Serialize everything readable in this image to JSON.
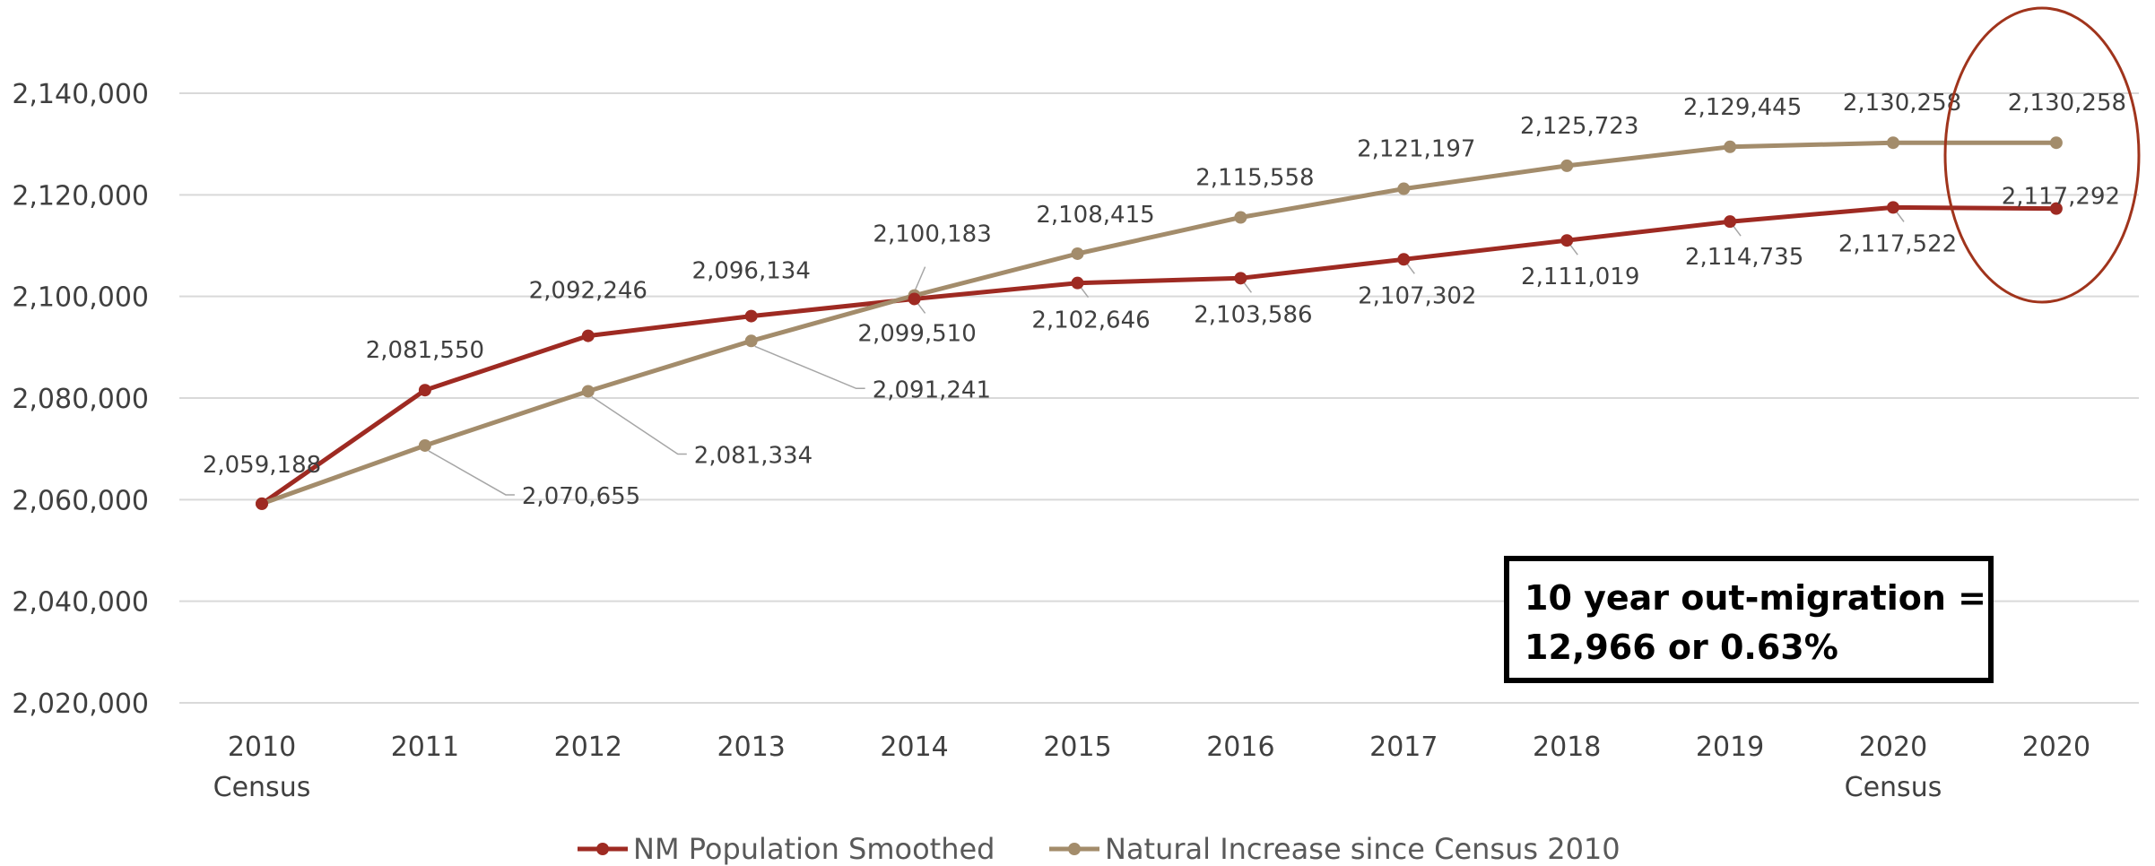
{
  "chart_data": {
    "type": "line",
    "categories": [
      "2010|Census",
      "2011",
      "2012",
      "2013",
      "2014",
      "2015",
      "2016",
      "2017",
      "2018",
      "2019",
      "2020|Census",
      "2020"
    ],
    "ylim": [
      2020000,
      2140000
    ],
    "yticks": [
      2020000,
      2040000,
      2060000,
      2080000,
      2100000,
      2120000,
      2140000
    ],
    "ytick_labels": [
      "2,020,000",
      "2,040,000",
      "2,060,000",
      "2,080,000",
      "2,100,000",
      "2,120,000",
      "2,140,000"
    ],
    "grid": true,
    "legend_position": "bottom",
    "series": [
      {
        "name": "NM Population Smoothed",
        "color": "#9E2A22",
        "values": [
          2059188,
          2081550,
          2092246,
          2096134,
          2099510,
          2102646,
          2103586,
          2107302,
          2111019,
          2114735,
          2117522,
          2117292
        ],
        "labels": [
          "2,059,188",
          "2,081,550",
          "2,092,246",
          "2,096,134",
          "2,099,510",
          "2,102,646",
          "2,103,586",
          "2,107,302",
          "2,111,019",
          "2,114,735",
          "2,117,522",
          "2,117,292"
        ]
      },
      {
        "name": "Natural Increase since Census 2010",
        "color": "#A38C6B",
        "values": [
          2059188,
          2070655,
          2081334,
          2091241,
          2100183,
          2108415,
          2115558,
          2121197,
          2125723,
          2129445,
          2130258,
          2130258
        ],
        "labels": [
          "",
          "2,070,655",
          "2,081,334",
          "2,091,241",
          "2,100,183",
          "2,108,415",
          "2,115,558",
          "2,121,197",
          "2,125,723",
          "2,129,445",
          "2,130,258",
          "2,130,258"
        ]
      }
    ],
    "annotation": {
      "line1": "10 year out-migration =",
      "line2": "12,966 or 0.63%"
    },
    "highlight_ellipse_color": "#A0341C"
  }
}
